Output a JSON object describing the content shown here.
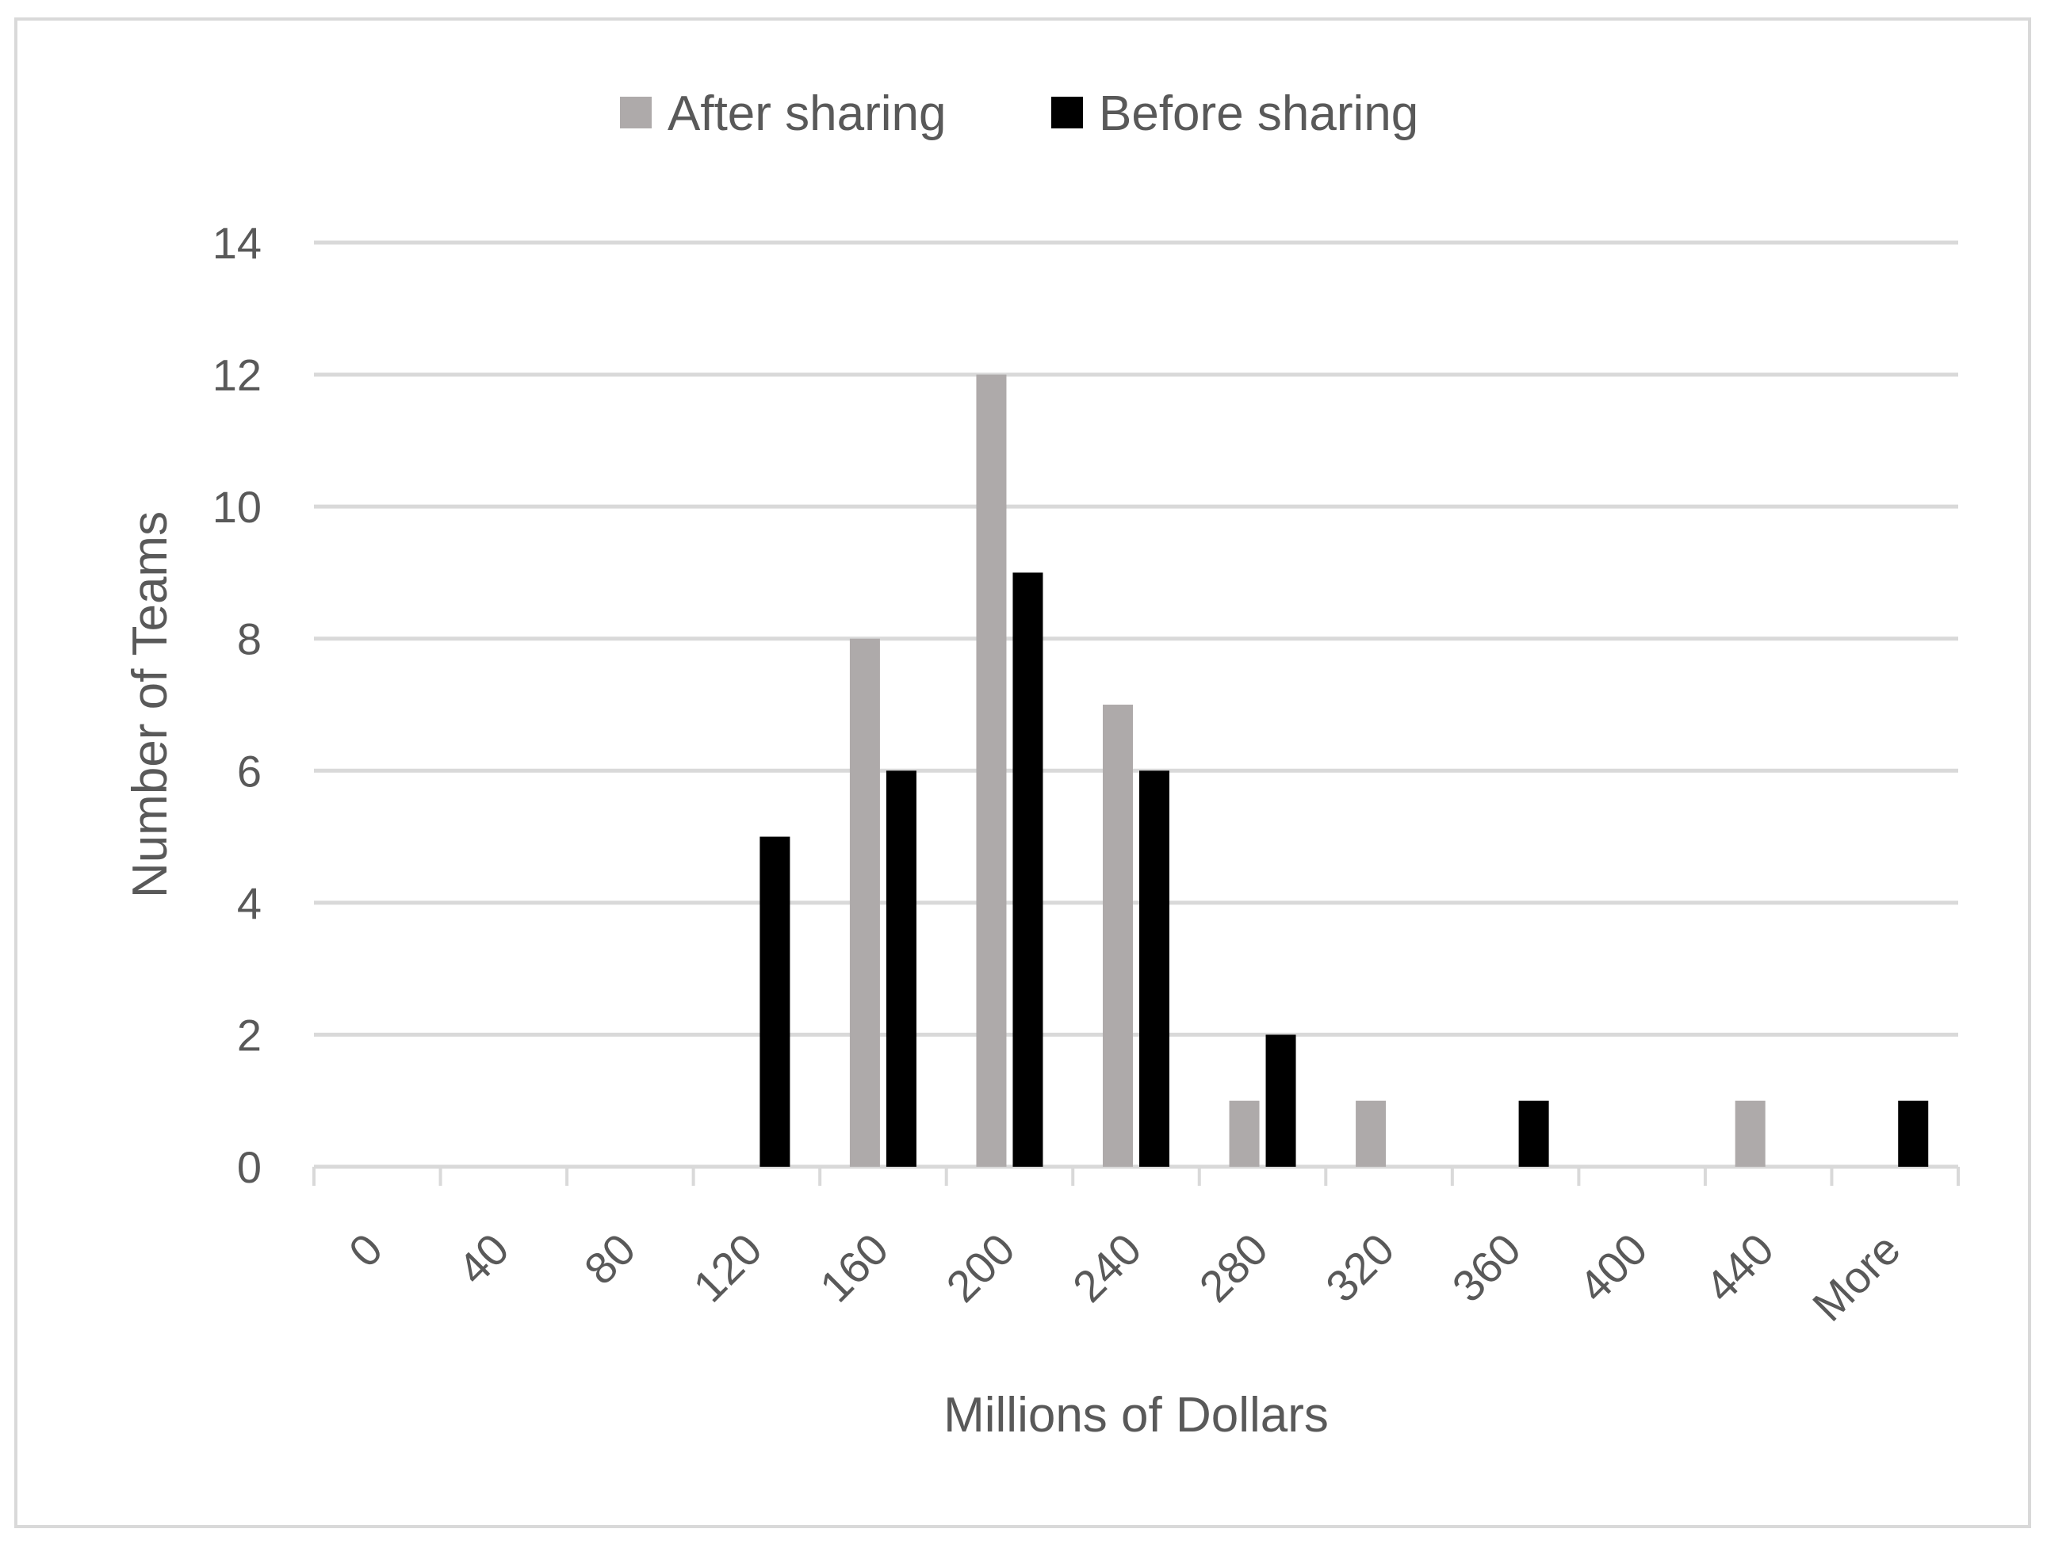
{
  "chart_data": {
    "type": "bar",
    "title": "",
    "xlabel": "Millions of Dollars",
    "ylabel": "Number of Teams",
    "categories": [
      "0",
      "40",
      "80",
      "120",
      "160",
      "200",
      "240",
      "280",
      "320",
      "360",
      "400",
      "440",
      "More"
    ],
    "series": [
      {
        "name": "After sharing",
        "color": "#aeaaaa",
        "values": [
          0,
          0,
          0,
          0,
          8,
          12,
          7,
          1,
          1,
          0,
          0,
          1,
          0
        ]
      },
      {
        "name": "Before sharing",
        "color": "#000000",
        "values": [
          0,
          0,
          0,
          5,
          6,
          9,
          6,
          2,
          0,
          1,
          0,
          0,
          1
        ]
      }
    ],
    "ylim": [
      0,
      14
    ],
    "yticks": [
      "0",
      "2",
      "4",
      "6",
      "8",
      "10",
      "12",
      "14"
    ],
    "grid": true,
    "legend_position": "top-center",
    "gridline_color": "#d9d9d9"
  }
}
